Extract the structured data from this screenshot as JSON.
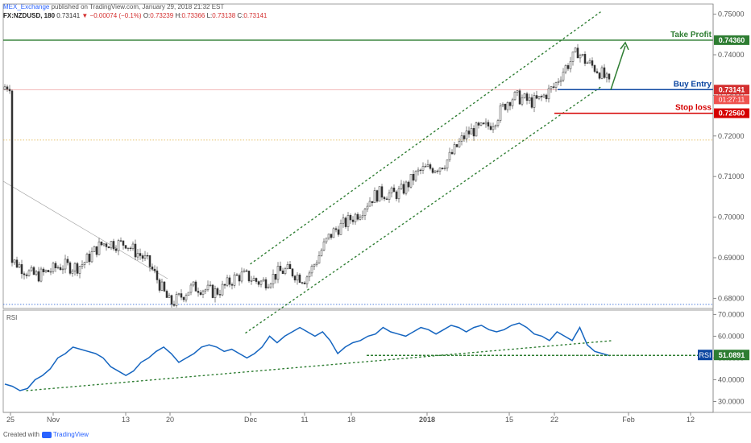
{
  "header": {
    "publisher": "MEX_Exchange",
    "published_text": "published on TradingView.com, January 29, 2018 21:32 EST",
    "symbol": "FX:NZDUSD, 180",
    "last": "0.73141",
    "change": "▼ −0.00074 (−0.1%)",
    "o_label": "O:",
    "o": "0.73239",
    "h_label": "H:",
    "h": "0.73366",
    "l_label": "L:",
    "l": "0.73138",
    "c_label": "C:",
    "c": "0.73141"
  },
  "footer": {
    "created_with": "Created with",
    "brand": "TradingView"
  },
  "colors": {
    "up": "#ffffff",
    "down": "#333333",
    "take_profit": "#2e7d32",
    "buy_entry": "#0d47a1",
    "stop_loss": "#d50000",
    "channel": "#2e7d32",
    "rsi_line": "#1565c0",
    "current_price": "#d32f2f"
  },
  "chart_data": [
    {
      "type": "candlestick",
      "symbol": "NZDUSD",
      "interval": "180",
      "ylim": [
        0.6775,
        0.7525
      ],
      "y_ticks": [
        "0.75000",
        "0.74000",
        "0.73000",
        "0.72000",
        "0.71000",
        "0.70000",
        "0.69000",
        "0.68000"
      ],
      "x_ticks": [
        "25",
        "Nov",
        "13",
        "20",
        "Dec",
        "11",
        "18",
        "2018",
        "15",
        "22",
        "Feb",
        "12"
      ],
      "price_anchors": [
        {
          "x": "25",
          "y": 0.688
        },
        {
          "x": "Nov",
          "y": 0.686
        },
        {
          "x": "13",
          "y": 0.695
        },
        {
          "x": "20",
          "y": 0.68
        },
        {
          "x": "Dec",
          "y": 0.685
        },
        {
          "x": "11",
          "y": 0.686
        },
        {
          "x": "18",
          "y": 0.701
        },
        {
          "x": "2018",
          "y": 0.711
        },
        {
          "x": "15",
          "y": 0.728
        },
        {
          "x": "22",
          "y": 0.731
        },
        {
          "x": "Jan 25",
          "y": 0.742
        },
        {
          "x": "Jan 29",
          "y": 0.7314
        }
      ],
      "levels": [
        {
          "name": "Take Profit",
          "value": 0.7436,
          "label": "0.74360"
        },
        {
          "name": "Buy Entry",
          "value": 0.73141,
          "label": "0.73141"
        },
        {
          "name": "Stop loss",
          "value": 0.7256,
          "label": "0.72560"
        }
      ],
      "countdown": "01:27:11",
      "horizontal_lines": [
        0.719,
        0.6785
      ],
      "channel": {
        "upper": [
          {
            "x": "Dec",
            "y": 0.6885
          },
          {
            "x": "Jan 27",
            "y": 0.7505
          }
        ],
        "lower": [
          {
            "x": "Nov 28",
            "y": 0.6715
          },
          {
            "x": "Jan 27",
            "y": 0.732
          }
        ]
      },
      "projection_arrow": {
        "from": 0.7314,
        "to": 0.743
      }
    },
    {
      "type": "line",
      "title": "RSI",
      "ylim": [
        25,
        72
      ],
      "y_ticks": [
        "70.0000",
        "60.0000",
        "50.0000",
        "40.0000",
        "30.0000"
      ],
      "current_label": "RSI",
      "current_value": "51.0891",
      "support_level": 51.2,
      "series": [
        {
          "name": "RSI",
          "values": [
            38,
            37,
            35,
            36,
            40,
            42,
            45,
            50,
            52,
            55,
            54,
            53,
            52,
            50,
            46,
            44,
            42,
            44,
            48,
            50,
            53,
            55,
            52,
            48,
            50,
            52,
            55,
            56,
            55,
            53,
            54,
            52,
            50,
            52,
            55,
            60,
            57,
            60,
            62,
            64,
            62,
            60,
            62,
            58,
            52,
            55,
            57,
            58,
            60,
            61,
            64,
            62,
            61,
            60,
            62,
            64,
            63,
            61,
            63,
            65,
            64,
            62,
            64,
            65,
            63,
            62,
            63,
            65,
            66,
            64,
            61,
            60,
            58,
            62,
            60,
            58,
            64,
            56,
            53,
            52,
            51
          ]
        }
      ],
      "trendline": [
        {
          "x": "25",
          "y": 35
        },
        {
          "x": "Jan 27",
          "y": 58
        }
      ]
    }
  ]
}
